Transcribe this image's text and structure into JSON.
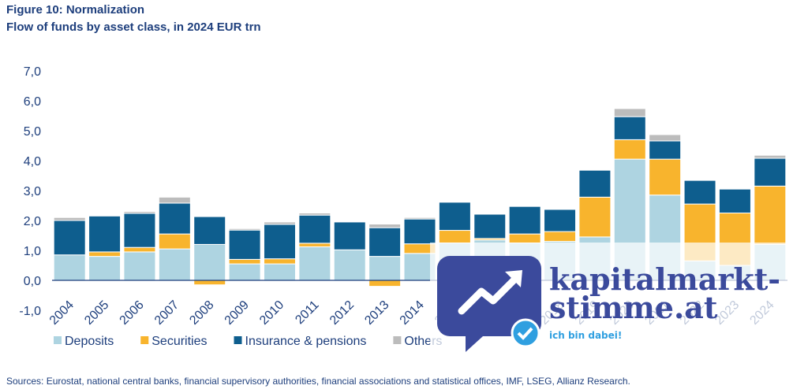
{
  "chart_data": {
    "type": "stacked_bar",
    "title": "Figure 10: Normalization",
    "subtitle": "Flow of funds by asset class, in 2024 EUR trn",
    "source": "Sources: Eurostat, national central banks, financial supervisory authorities, financial associations and statistical offices, IMF, LSEG, Allianz Research.",
    "categories": [
      "2004",
      "2005",
      "2006",
      "2007",
      "2008",
      "2009",
      "2010",
      "2011",
      "2012",
      "2013",
      "2014",
      "2015",
      "2016",
      "2017",
      "2018",
      "2019",
      "2020",
      "2021",
      "2022",
      "2023",
      "2024"
    ],
    "series": [
      {
        "name": "Deposits",
        "color": "#aed4e1",
        "values": [
          0.85,
          0.8,
          0.95,
          1.05,
          1.2,
          0.55,
          0.55,
          1.12,
          1.02,
          0.8,
          0.9,
          1.25,
          1.35,
          1.25,
          1.3,
          1.45,
          4.05,
          2.85,
          0.65,
          0.5,
          1.2
        ]
      },
      {
        "name": "Securities",
        "color": "#f8b42d",
        "values": [
          0,
          0.15,
          0.15,
          0.5,
          -0.15,
          0.15,
          0.17,
          0.12,
          0,
          -0.2,
          0.32,
          0.42,
          0.05,
          0.3,
          0.33,
          1.33,
          0.65,
          1.2,
          1.9,
          1.75,
          1.95
        ]
      },
      {
        "name": "Insurance & pensions",
        "color": "#0e5e8e",
        "values": [
          1.15,
          1.2,
          1.14,
          1.03,
          0.93,
          0.98,
          1.15,
          0.94,
          0.93,
          0.96,
          0.83,
          0.94,
          0.81,
          0.92,
          0.74,
          0.9,
          0.77,
          0.61,
          0.79,
          0.8,
          0.93
        ]
      },
      {
        "name": "Others",
        "color": "#bcbcbc",
        "values": [
          0.1,
          0,
          0.06,
          0.2,
          0,
          0.05,
          0.08,
          0.07,
          0,
          0.12,
          0.05,
          0,
          0,
          0,
          0,
          0,
          0.27,
          0.21,
          0,
          0,
          0.1
        ]
      }
    ],
    "ylim": [
      -1,
      7
    ],
    "yticks": [
      {
        "value": -1,
        "label": "-1,0"
      },
      {
        "value": 0,
        "label": "0,0"
      },
      {
        "value": 1,
        "label": "1,0"
      },
      {
        "value": 2,
        "label": "2,0"
      },
      {
        "value": 3,
        "label": "3,0"
      },
      {
        "value": 4,
        "label": "4,0"
      },
      {
        "value": 5,
        "label": "5,0"
      },
      {
        "value": 6,
        "label": "6,0"
      },
      {
        "value": 7,
        "label": "7,0"
      }
    ]
  },
  "watermark": {
    "lines": [
      "kapitalmarkt-",
      "stimme.at"
    ],
    "tagline": "ich bin dabei!"
  }
}
